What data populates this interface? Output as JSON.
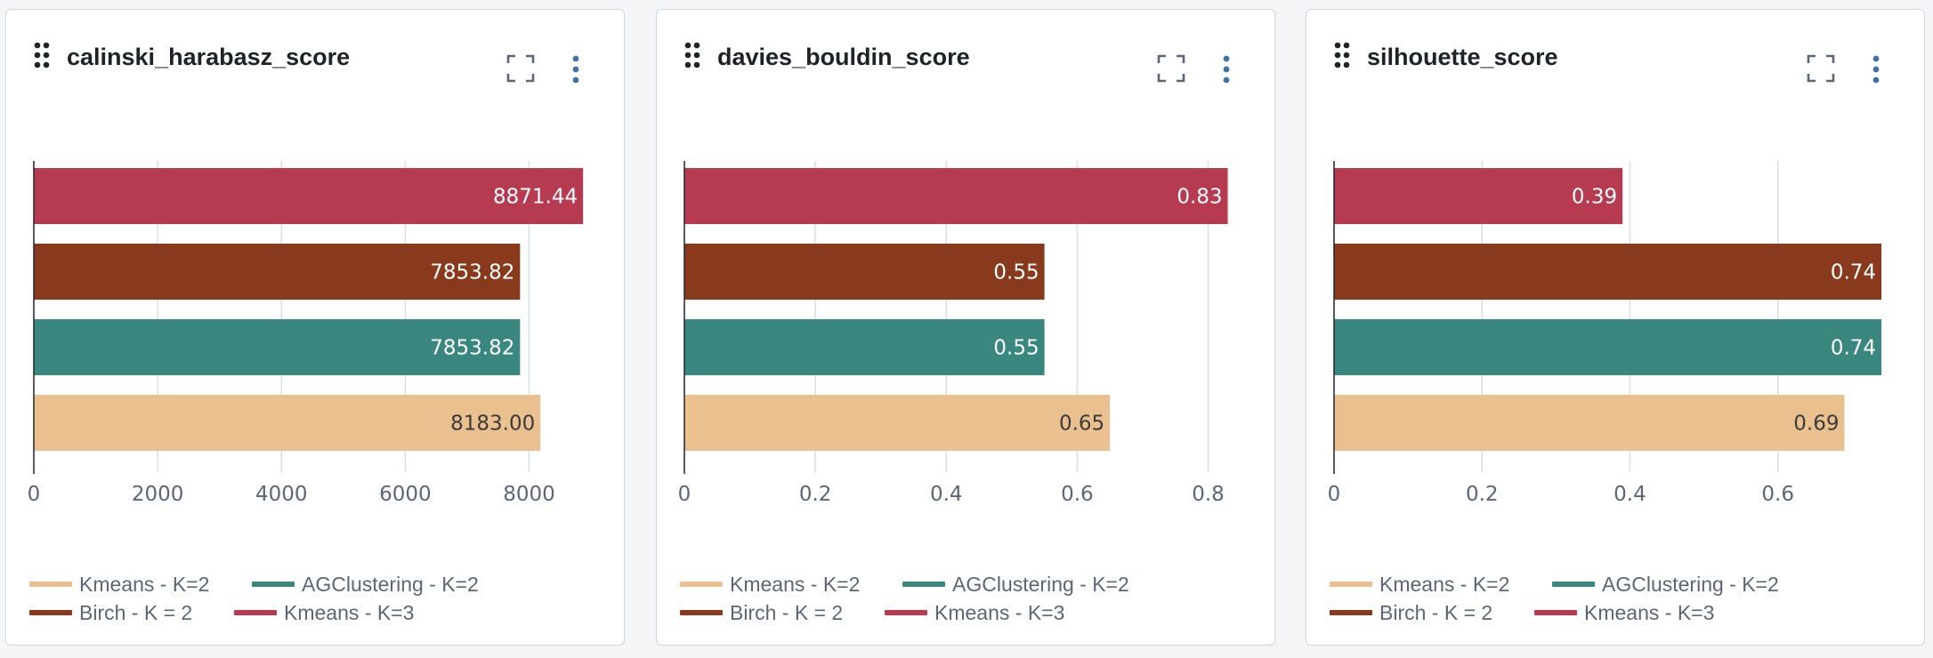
{
  "colors": {
    "kmeans_k2": "#ebc08f",
    "agclustering_k2": "#3a877f",
    "birch_k2": "#8a3a1c",
    "kmeans_k3": "#b73b50"
  },
  "icons": {
    "drag": "drag-handle-icon",
    "expand": "expand-icon",
    "menu": "more-vertical-icon"
  },
  "panels": [
    {
      "title": "calinski_harabasz_score",
      "legend": [
        "Kmeans - K=2",
        "AGClustering - K=2",
        "Birch - K = 2",
        "Kmeans - K=3"
      ]
    },
    {
      "title": "davies_bouldin_score",
      "legend": [
        "Kmeans - K=2",
        "AGClustering - K=2",
        "Birch - K = 2",
        "Kmeans - K=3"
      ]
    },
    {
      "title": "silhouette_score",
      "legend": [
        "Kmeans - K=2",
        "AGClustering - K=2",
        "Birch - K = 2",
        "Kmeans - K=3"
      ]
    }
  ],
  "chart_data": [
    {
      "type": "bar",
      "orientation": "horizontal",
      "title": "calinski_harabasz_score",
      "categories": [
        "Kmeans - K=3",
        "Birch - K = 2",
        "AGClustering - K=2",
        "Kmeans - K=2"
      ],
      "values": [
        8871.44,
        7853.82,
        7853.82,
        8183.0
      ],
      "value_labels": [
        "8871.44",
        "7853.82",
        "7853.82",
        "8183.00"
      ],
      "colors": [
        "#b73b50",
        "#8a3a1c",
        "#3a877f",
        "#ebc08f"
      ],
      "xlim": [
        0,
        9200
      ],
      "ticks": [
        0,
        2000,
        4000,
        6000,
        8000
      ],
      "tick_labels": [
        "0",
        "2000",
        "4000",
        "6000",
        "8000"
      ],
      "grid": true,
      "legend_position": "bottom"
    },
    {
      "type": "bar",
      "orientation": "horizontal",
      "title": "davies_bouldin_score",
      "categories": [
        "Kmeans - K=3",
        "Birch - K = 2",
        "AGClustering - K=2",
        "Kmeans - K=2"
      ],
      "values": [
        0.83,
        0.55,
        0.55,
        0.65
      ],
      "value_labels": [
        "0.83",
        "0.55",
        "0.55",
        "0.65"
      ],
      "colors": [
        "#b73b50",
        "#8a3a1c",
        "#3a877f",
        "#ebc08f"
      ],
      "xlim": [
        0,
        0.87
      ],
      "ticks": [
        0,
        0.2,
        0.4,
        0.6,
        0.8
      ],
      "tick_labels": [
        "0",
        "0.2",
        "0.4",
        "0.6",
        "0.8"
      ],
      "grid": true,
      "legend_position": "bottom"
    },
    {
      "type": "bar",
      "orientation": "horizontal",
      "title": "silhouette_score",
      "categories": [
        "Kmeans - K=3",
        "Birch - K = 2",
        "AGClustering - K=2",
        "Kmeans - K=2"
      ],
      "values": [
        0.39,
        0.74,
        0.74,
        0.69
      ],
      "value_labels": [
        "0.39",
        "0.74",
        "0.74",
        "0.69"
      ],
      "colors": [
        "#b73b50",
        "#8a3a1c",
        "#3a877f",
        "#ebc08f"
      ],
      "xlim": [
        0,
        0.77
      ],
      "ticks": [
        0,
        0.2,
        0.4,
        0.6
      ],
      "tick_labels": [
        "0",
        "0.2",
        "0.4",
        "0.6"
      ],
      "grid": true,
      "legend_position": "bottom"
    }
  ]
}
